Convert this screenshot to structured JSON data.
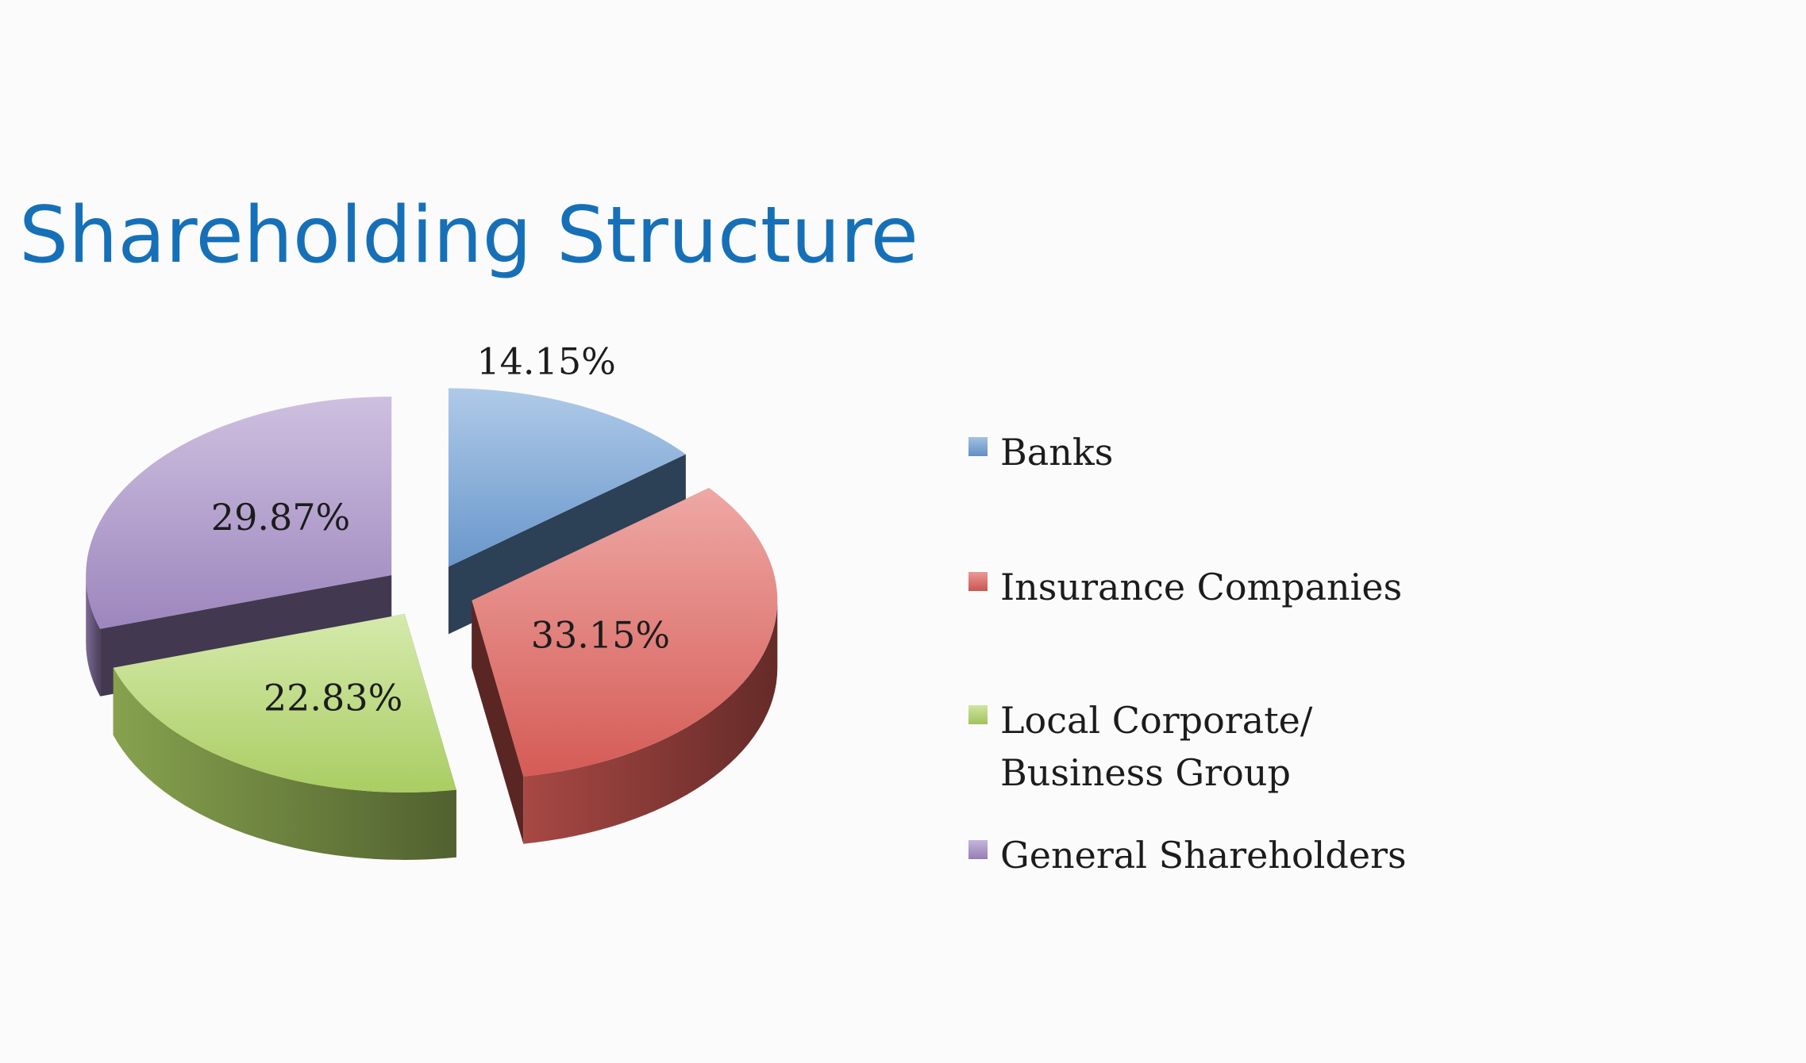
{
  "slide": {
    "title": "Shareholding Structure"
  },
  "chart_data": {
    "type": "pie",
    "style": "3d-exploded",
    "title": "",
    "series": [
      {
        "categories": [
          "Banks",
          "Insurance Companies",
          "Local Corporate/\nBusiness Group",
          "General Shareholders"
        ],
        "values": [
          14.15,
          33.15,
          22.83,
          29.87
        ],
        "labels": [
          "14.15%",
          "33.15%",
          "22.83%",
          "29.87%"
        ],
        "colors": [
          "#6e9fd6",
          "#e0605a",
          "#b3d868",
          "#a58dc7"
        ]
      }
    ],
    "legend": {
      "position": "right",
      "entries": [
        "Banks",
        "Insurance Companies",
        "Local Corporate/\nBusiness Group",
        "General Shareholders"
      ]
    }
  }
}
